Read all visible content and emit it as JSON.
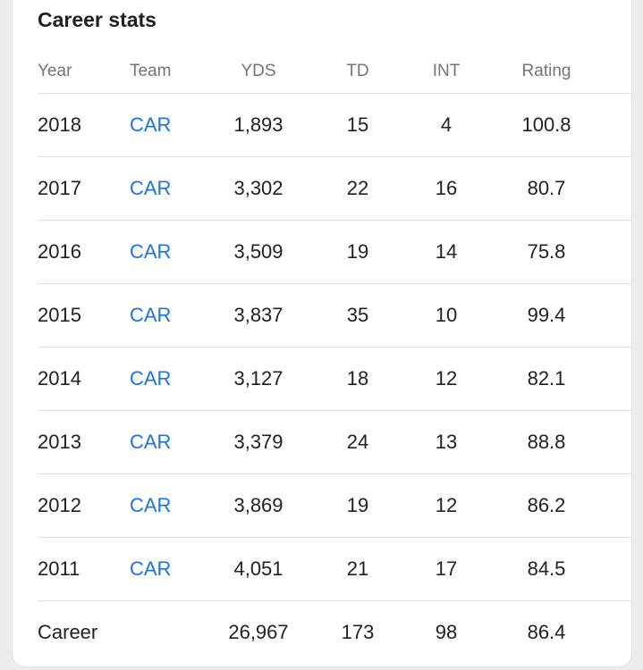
{
  "card": {
    "title": "Career stats"
  },
  "table": {
    "headers": {
      "year": "Year",
      "team": "Team",
      "yds": "YDS",
      "td": "TD",
      "int": "INT",
      "rating": "Rating"
    },
    "rows": [
      {
        "year": "2018",
        "team": "CAR",
        "yds": "1,893",
        "td": "15",
        "int": "4",
        "rating": "100.8"
      },
      {
        "year": "2017",
        "team": "CAR",
        "yds": "3,302",
        "td": "22",
        "int": "16",
        "rating": "80.7"
      },
      {
        "year": "2016",
        "team": "CAR",
        "yds": "3,509",
        "td": "19",
        "int": "14",
        "rating": "75.8"
      },
      {
        "year": "2015",
        "team": "CAR",
        "yds": "3,837",
        "td": "35",
        "int": "10",
        "rating": "99.4"
      },
      {
        "year": "2014",
        "team": "CAR",
        "yds": "3,127",
        "td": "18",
        "int": "12",
        "rating": "82.1"
      },
      {
        "year": "2013",
        "team": "CAR",
        "yds": "3,379",
        "td": "24",
        "int": "13",
        "rating": "88.8"
      },
      {
        "year": "2012",
        "team": "CAR",
        "yds": "3,869",
        "td": "19",
        "int": "12",
        "rating": "86.2"
      },
      {
        "year": "2011",
        "team": "CAR",
        "yds": "4,051",
        "td": "21",
        "int": "17",
        "rating": "84.5"
      }
    ],
    "career": {
      "label": "Career",
      "yds": "26,967",
      "td": "173",
      "int": "98",
      "rating": "86.4"
    }
  },
  "colors": {
    "link": "#1a73e8",
    "header_text": "#70757a",
    "body_text": "#202124",
    "divider": "#e0e0e0"
  }
}
